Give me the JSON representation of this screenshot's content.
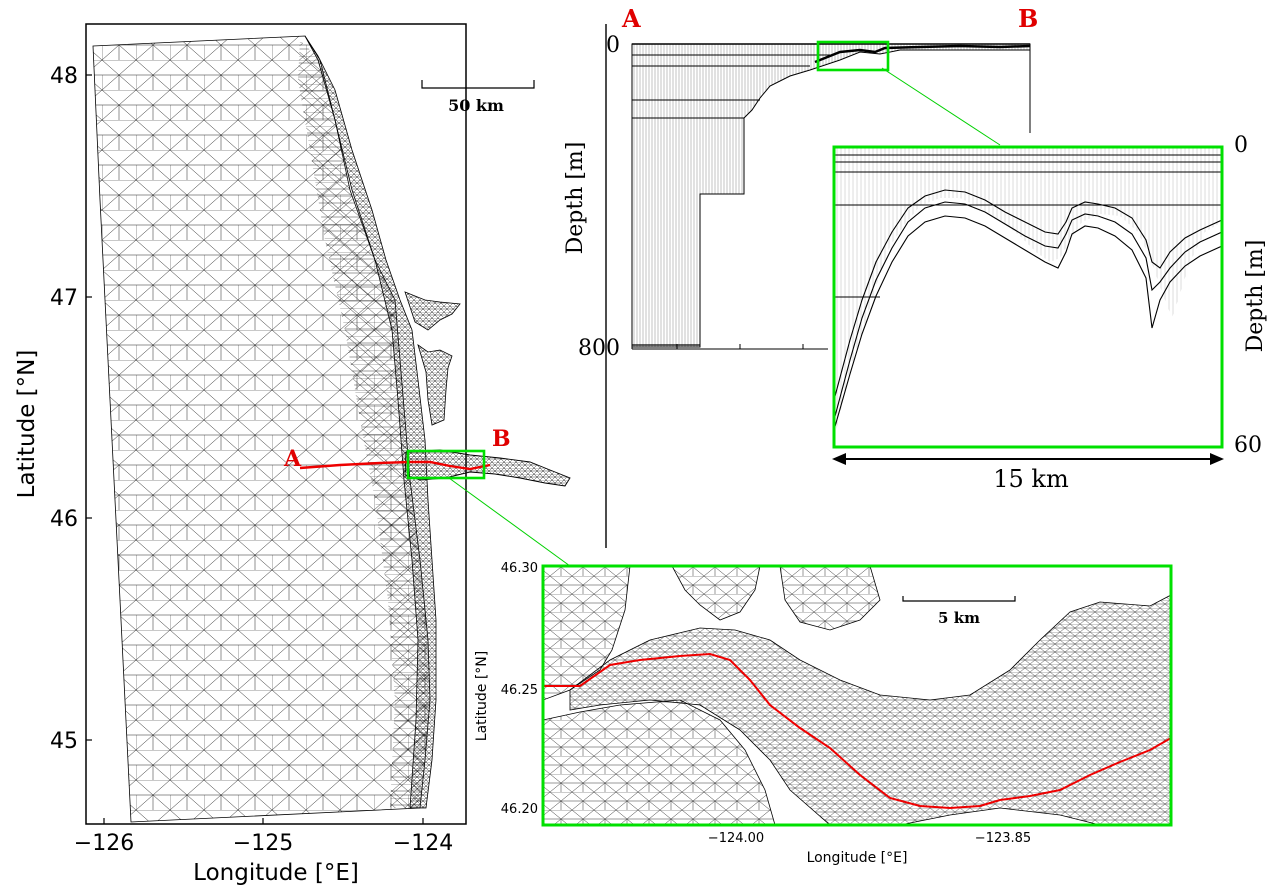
{
  "figure": {
    "main_map": {
      "xlabel": "Longitude [°E]",
      "ylabel": "Latitude [°N]",
      "x_ticks": [
        "−126",
        "−125",
        "−124"
      ],
      "y_ticks": [
        "48",
        "47",
        "46",
        "45"
      ],
      "scale_bar": "50 km",
      "transect_start": "A",
      "transect_end": "B"
    },
    "transect_section": {
      "label_start": "A",
      "label_end": "B",
      "ylabel": "Depth [m]",
      "y_top": "0",
      "y_bottom": "800"
    },
    "section_zoom": {
      "ylabel": "Depth [m]",
      "y_top": "0",
      "y_bottom": "60",
      "length_label": "15 km"
    },
    "estuary_zoom": {
      "xlabel": "Longitude [°E]",
      "ylabel": "Latitude [°N]",
      "x_ticks": [
        "−124.00",
        "−123.85"
      ],
      "y_ticks": [
        "46.30",
        "46.25",
        "46.20"
      ],
      "scale_bar": "5 km"
    },
    "colors": {
      "highlight": "#00e000",
      "transect": "#ee0000",
      "mesh": "#000000"
    }
  }
}
